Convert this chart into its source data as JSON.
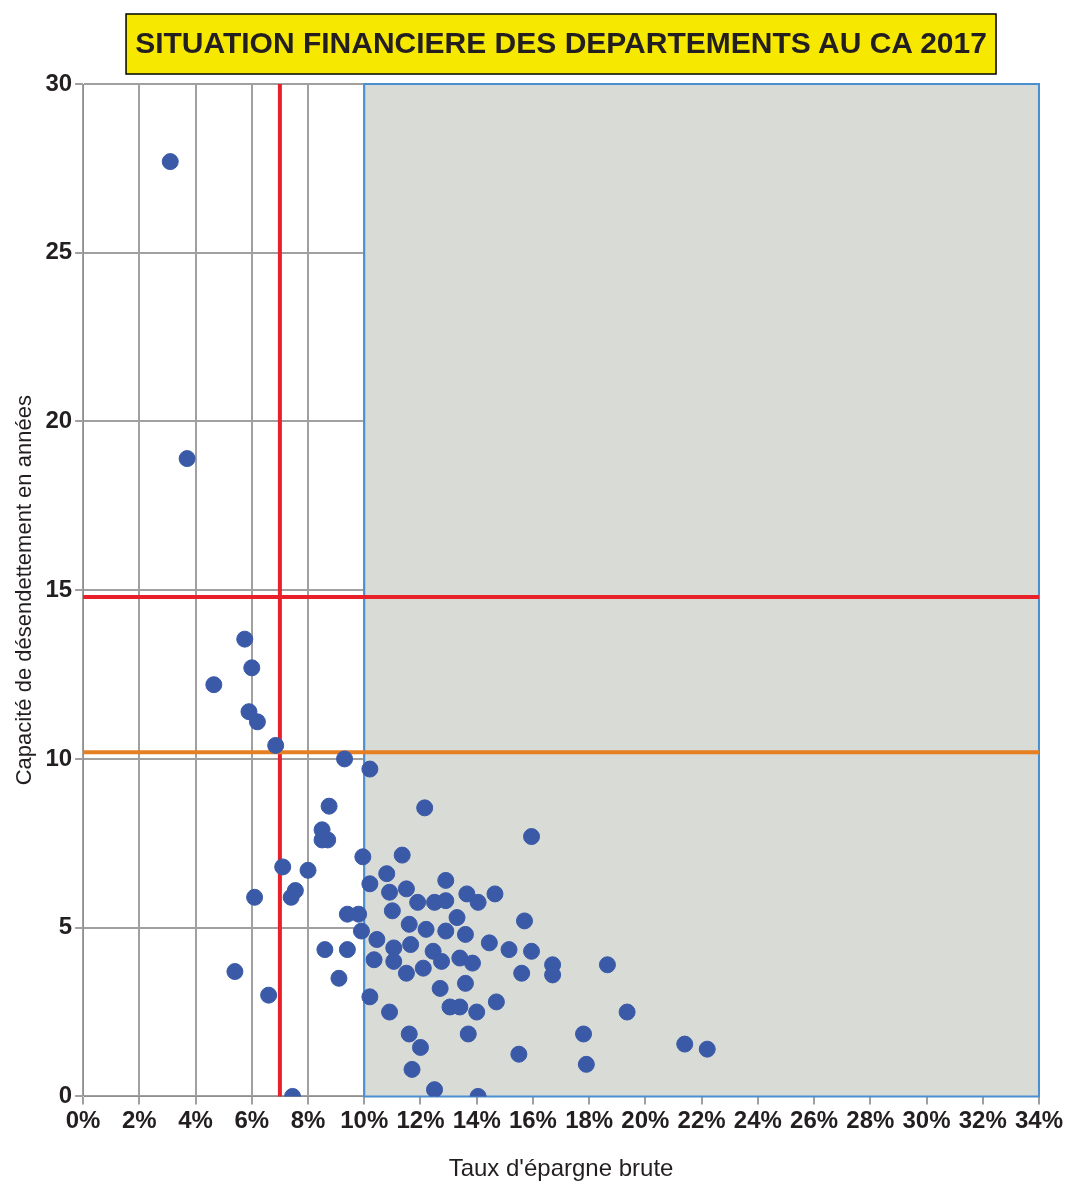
{
  "chart_data": {
    "type": "scatter",
    "title": "SITUATION FINANCIERE DES DEPARTEMENTS AU CA 2017",
    "xlabel": "Taux d'épargne brute",
    "ylabel": "Capacité de désendettement en années",
    "xlim": [
      0,
      34
    ],
    "ylim": [
      0,
      30
    ],
    "xticks": [
      {
        "value": 0,
        "label": "0%"
      },
      {
        "value": 2,
        "label": "2%"
      },
      {
        "value": 4,
        "label": "4%"
      },
      {
        "value": 6,
        "label": "6%"
      },
      {
        "value": 8,
        "label": "8%"
      },
      {
        "value": 10,
        "label": "10%"
      },
      {
        "value": 12,
        "label": "12%"
      },
      {
        "value": 14,
        "label": "14%"
      },
      {
        "value": 16,
        "label": "16%"
      },
      {
        "value": 18,
        "label": "18%"
      },
      {
        "value": 20,
        "label": "20%"
      },
      {
        "value": 22,
        "label": "22%"
      },
      {
        "value": 24,
        "label": "24%"
      },
      {
        "value": 26,
        "label": "26%"
      },
      {
        "value": 28,
        "label": "28%"
      },
      {
        "value": 30,
        "label": "30%"
      },
      {
        "value": 32,
        "label": "32%"
      },
      {
        "value": 34,
        "label": "34%"
      }
    ],
    "yticks": [
      0,
      5,
      10,
      15,
      20,
      25,
      30
    ],
    "grid": true,
    "marker": "circle",
    "bands": [
      {
        "axis": "x",
        "from": 10,
        "to": 34,
        "color": "#d9dbd6"
      }
    ],
    "ref_lines": [
      {
        "axis": "x",
        "value": 7,
        "color": "#e8202a"
      },
      {
        "axis": "y",
        "value": 14.8,
        "color": "#e8202a"
      },
      {
        "axis": "y",
        "value": 10.2,
        "color": "#e67e22"
      }
    ],
    "series": [
      {
        "color": "#3a5aa8",
        "x": [
          3.1,
          3.7,
          4.65,
          5.75,
          6.0,
          5.9,
          6.2,
          6.85,
          9.3,
          10.2,
          8.75,
          8.5,
          8.7,
          8.5,
          7.1,
          8.0,
          7.55,
          7.4,
          6.1,
          9.4,
          9.8,
          9.95,
          9.9,
          8.6,
          9.4,
          9.1,
          5.4,
          6.6,
          7.45,
          12.15,
          15.95,
          11.35,
          10.8,
          10.2,
          10.9,
          11.5,
          11.0,
          11.9,
          12.5,
          12.9,
          12.9,
          13.65,
          14.05,
          14.65,
          13.3,
          11.6,
          12.2,
          12.9,
          13.6,
          15.7,
          10.45,
          11.05,
          11.65,
          12.45,
          14.45,
          15.15,
          15.95,
          10.35,
          11.05,
          11.5,
          12.1,
          12.75,
          13.4,
          13.85,
          15.6,
          16.7,
          16.7,
          18.65,
          12.7,
          13.6,
          10.2,
          10.9,
          13.05,
          13.4,
          14.0,
          14.7,
          19.35,
          11.6,
          13.7,
          17.8,
          12.0,
          21.4,
          22.2,
          15.5,
          17.9,
          11.7,
          12.5,
          14.05
        ],
        "values": [
          27.7,
          18.9,
          12.2,
          13.55,
          12.7,
          11.4,
          11.1,
          10.4,
          10.0,
          9.7,
          8.6,
          7.6,
          7.6,
          7.9,
          6.8,
          6.7,
          6.1,
          5.9,
          5.9,
          5.4,
          5.4,
          7.1,
          4.9,
          4.35,
          4.35,
          3.5,
          3.7,
          3.0,
          0.0,
          8.55,
          7.7,
          7.15,
          6.6,
          6.3,
          6.05,
          6.15,
          5.5,
          5.75,
          5.75,
          6.4,
          5.8,
          6.0,
          5.75,
          6.0,
          5.3,
          5.1,
          4.95,
          4.9,
          4.8,
          5.2,
          4.65,
          4.4,
          4.5,
          4.3,
          4.55,
          4.35,
          4.3,
          4.05,
          4.0,
          3.65,
          3.8,
          4.0,
          4.1,
          3.95,
          3.65,
          3.9,
          3.6,
          3.9,
          3.2,
          3.35,
          2.95,
          2.5,
          2.65,
          2.65,
          2.5,
          2.8,
          2.5,
          1.85,
          1.85,
          1.85,
          1.45,
          1.55,
          1.4,
          1.25,
          0.95,
          0.8,
          0.2,
          0.0
        ]
      }
    ]
  }
}
